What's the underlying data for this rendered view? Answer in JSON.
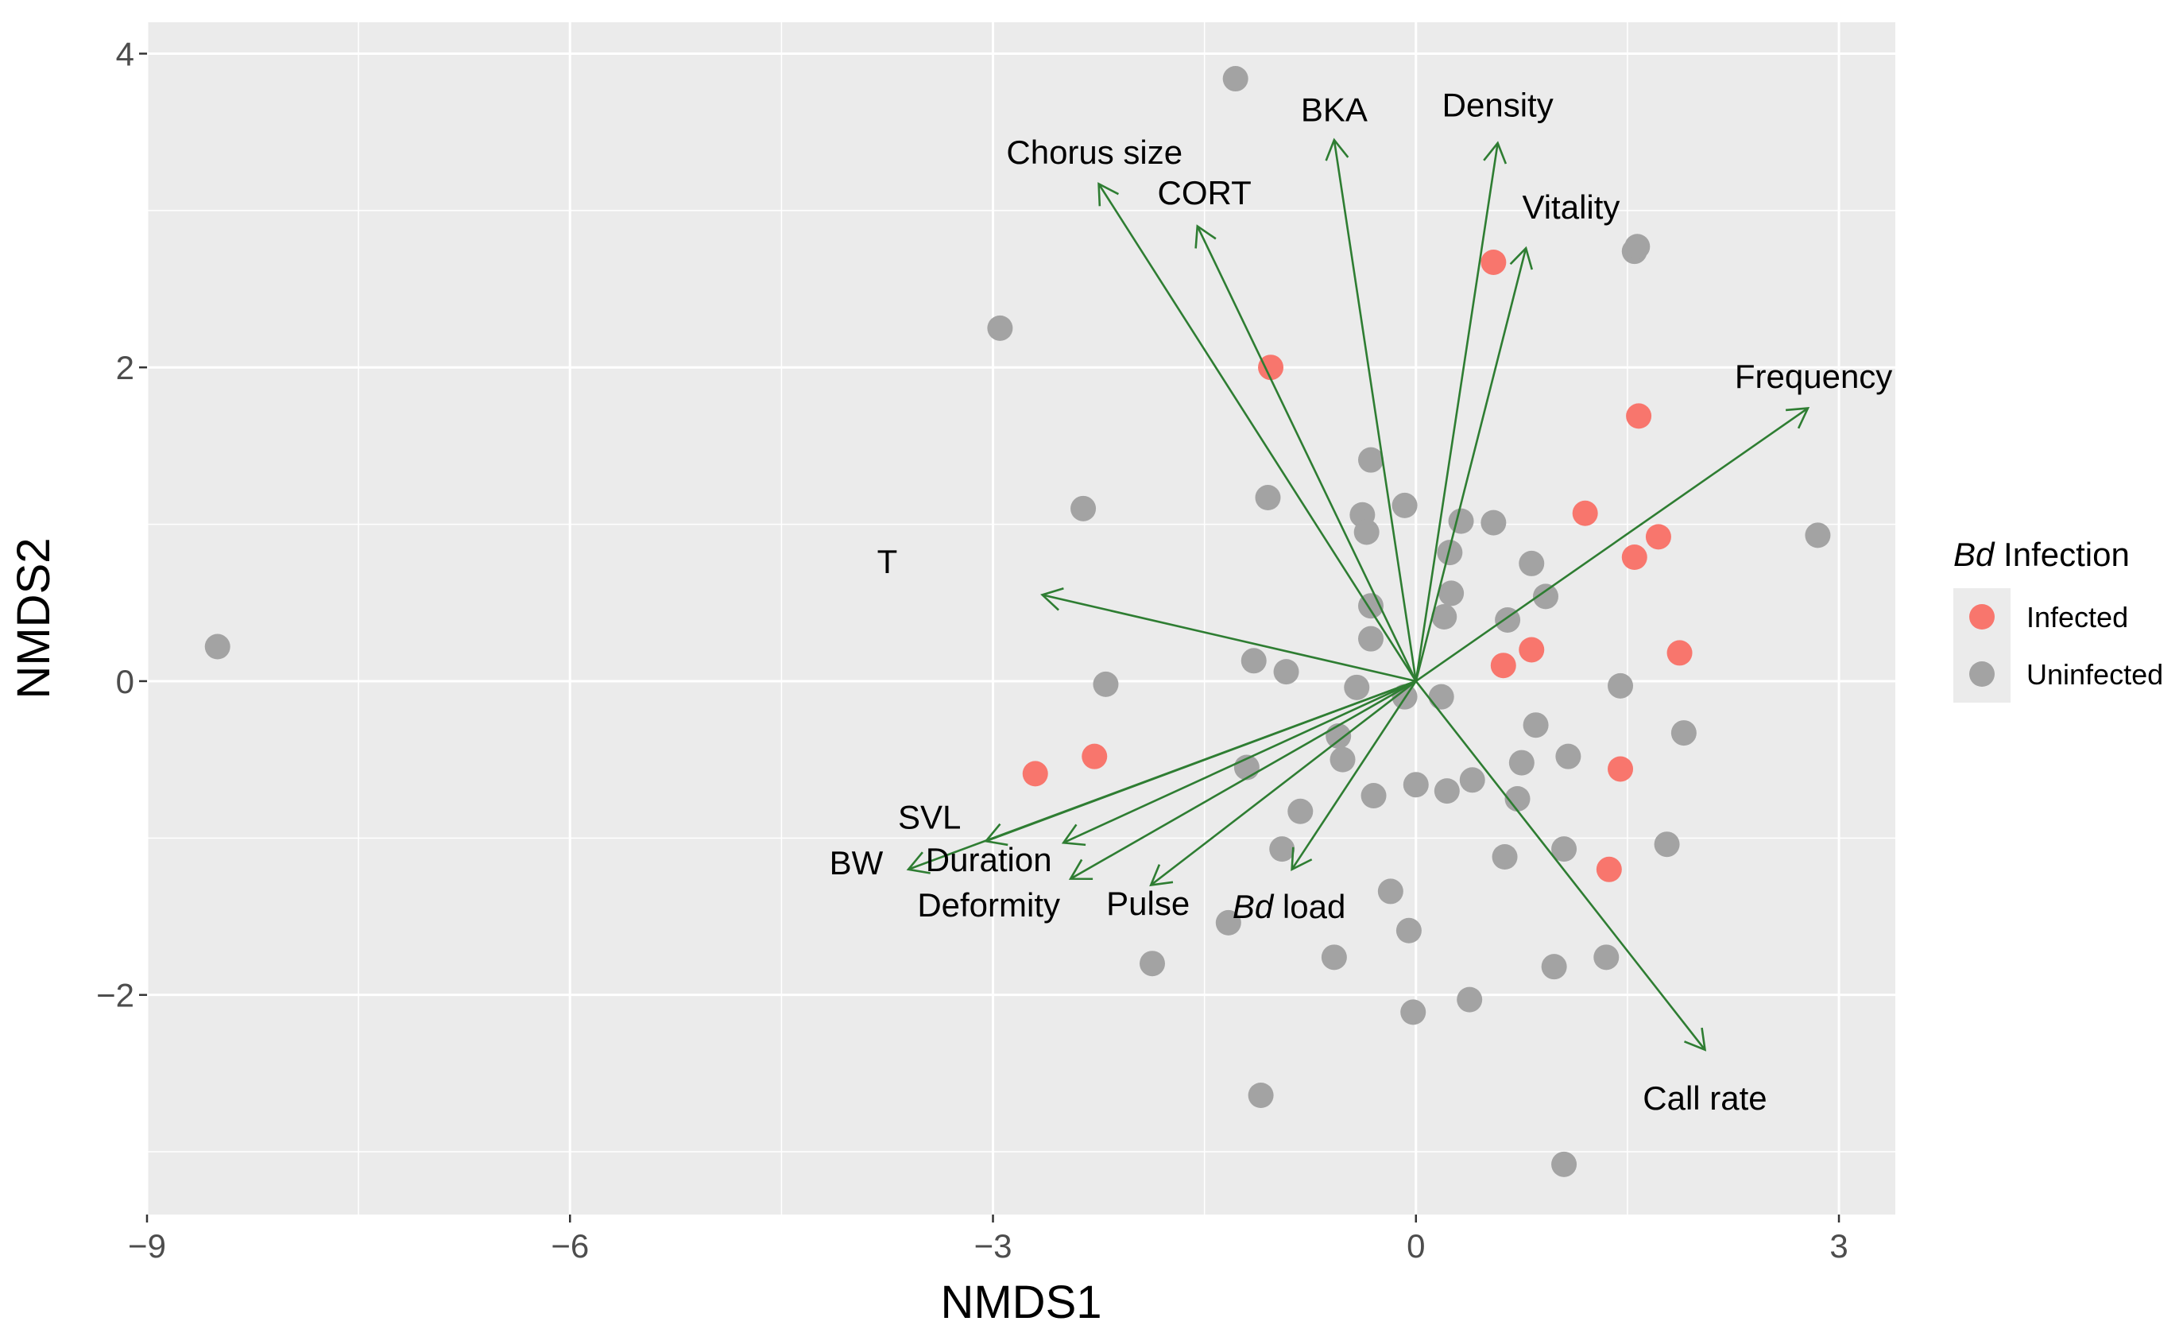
{
  "chart_data": {
    "type": "scatter",
    "title": "",
    "xlabel": "NMDS1",
    "ylabel": "NMDS2",
    "xlim": [
      -9,
      3.4
    ],
    "ylim": [
      -3.4,
      4.2
    ],
    "xticks": [
      -9,
      -6,
      -3,
      0,
      3
    ],
    "yticks": [
      -2,
      0,
      2,
      4
    ],
    "xtick_labels": [
      "−9",
      "−6",
      "−3",
      "0",
      "3"
    ],
    "ytick_labels": [
      "−2",
      "0",
      "2",
      "4"
    ],
    "colors": {
      "panel": "#ebebeb",
      "grid": "#ffffff",
      "infected": "#f8766d",
      "uninfected": "#a3a3a3",
      "arrow": "#2e7d32"
    },
    "legend": {
      "title_italic": "Bd",
      "title_rest": " Infection",
      "position": "right",
      "entries": [
        {
          "label": "Infected",
          "group": "infected"
        },
        {
          "label": "Uninfected",
          "group": "uninfected"
        }
      ]
    },
    "series": [
      {
        "name": "Infected",
        "group": "infected",
        "points": [
          [
            0.55,
            2.67
          ],
          [
            -1.03,
            2.0
          ],
          [
            1.58,
            1.69
          ],
          [
            1.2,
            1.07
          ],
          [
            1.72,
            0.92
          ],
          [
            1.55,
            0.79
          ],
          [
            1.87,
            0.18
          ],
          [
            0.82,
            0.2
          ],
          [
            0.62,
            0.1
          ],
          [
            -2.28,
            -0.48
          ],
          [
            -2.7,
            -0.59
          ],
          [
            1.45,
            -0.56
          ],
          [
            1.37,
            -1.2
          ]
        ]
      },
      {
        "name": "Uninfected",
        "group": "uninfected",
        "points": [
          [
            -8.5,
            0.22
          ],
          [
            -1.28,
            3.84
          ],
          [
            -2.95,
            2.25
          ],
          [
            1.55,
            2.74
          ],
          [
            1.57,
            2.77
          ],
          [
            -2.36,
            1.1
          ],
          [
            -1.05,
            1.17
          ],
          [
            -0.32,
            1.41
          ],
          [
            -0.38,
            1.06
          ],
          [
            -0.08,
            1.12
          ],
          [
            -0.35,
            0.95
          ],
          [
            0.32,
            1.02
          ],
          [
            0.55,
            1.01
          ],
          [
            2.85,
            0.93
          ],
          [
            0.24,
            0.82
          ],
          [
            0.82,
            0.75
          ],
          [
            0.25,
            0.56
          ],
          [
            0.92,
            0.54
          ],
          [
            -0.32,
            0.48
          ],
          [
            0.65,
            0.39
          ],
          [
            0.2,
            0.41
          ],
          [
            -0.32,
            0.27
          ],
          [
            -1.15,
            0.13
          ],
          [
            -0.92,
            0.06
          ],
          [
            -2.2,
            -0.02
          ],
          [
            -0.42,
            -0.04
          ],
          [
            1.45,
            -0.03
          ],
          [
            -0.08,
            -0.1
          ],
          [
            0.18,
            -0.1
          ],
          [
            0.85,
            -0.28
          ],
          [
            1.9,
            -0.33
          ],
          [
            -0.55,
            -0.35
          ],
          [
            1.08,
            -0.48
          ],
          [
            -0.52,
            -0.5
          ],
          [
            0.75,
            -0.52
          ],
          [
            -1.2,
            -0.55
          ],
          [
            0.4,
            -0.63
          ],
          [
            0.0,
            -0.66
          ],
          [
            0.22,
            -0.7
          ],
          [
            -0.3,
            -0.73
          ],
          [
            0.72,
            -0.75
          ],
          [
            -0.82,
            -0.83
          ],
          [
            -0.95,
            -1.07
          ],
          [
            1.05,
            -1.07
          ],
          [
            1.78,
            -1.04
          ],
          [
            0.63,
            -1.12
          ],
          [
            -0.18,
            -1.34
          ],
          [
            -1.33,
            -1.54
          ],
          [
            -0.05,
            -1.59
          ],
          [
            -0.58,
            -1.76
          ],
          [
            -1.87,
            -1.8
          ],
          [
            1.35,
            -1.76
          ],
          [
            0.98,
            -1.82
          ],
          [
            0.38,
            -2.03
          ],
          [
            -0.02,
            -2.11
          ],
          [
            -1.1,
            -2.64
          ],
          [
            1.05,
            -3.08
          ]
        ]
      }
    ],
    "vectors": [
      {
        "label": "Chorus size",
        "italic": "",
        "end": [
          -2.25,
          3.17
        ],
        "label_at": [
          -2.28,
          3.37
        ]
      },
      {
        "label": "CORT",
        "italic": "",
        "end": [
          -1.55,
          2.9
        ],
        "label_at": [
          -1.5,
          3.11
        ]
      },
      {
        "label": "BKA",
        "italic": "",
        "end": [
          -0.58,
          3.45
        ],
        "label_at": [
          -0.58,
          3.64
        ]
      },
      {
        "label": "Density",
        "italic": "",
        "end": [
          0.58,
          3.43
        ],
        "label_at": [
          0.58,
          3.67
        ]
      },
      {
        "label": "Vitality",
        "italic": "",
        "end": [
          0.78,
          2.76
        ],
        "label_at": [
          1.1,
          3.02
        ]
      },
      {
        "label": "Frequency",
        "italic": "",
        "end": [
          2.78,
          1.74
        ],
        "label_at": [
          2.82,
          1.94
        ]
      },
      {
        "label": "T",
        "italic": "",
        "end": [
          -2.65,
          0.55
        ],
        "label_at": [
          -3.75,
          0.76
        ]
      },
      {
        "label": "SVL",
        "italic": "",
        "end": [
          -3.05,
          -1.02
        ],
        "label_at": [
          -3.45,
          -0.87
        ]
      },
      {
        "label": "BW",
        "italic": "",
        "end": [
          -3.6,
          -1.2
        ],
        "label_at": [
          -3.97,
          -1.16
        ]
      },
      {
        "label": "Duration",
        "italic": "",
        "end": [
          -2.5,
          -1.03
        ],
        "label_at": [
          -3.03,
          -1.14
        ]
      },
      {
        "label": "Deformity",
        "italic": "",
        "end": [
          -2.45,
          -1.26
        ],
        "label_at": [
          -3.03,
          -1.43
        ]
      },
      {
        "label": "Pulse",
        "italic": "",
        "end": [
          -1.88,
          -1.3
        ],
        "label_at": [
          -1.9,
          -1.42
        ]
      },
      {
        "label": " load",
        "italic": "Bd",
        "end": [
          -0.88,
          -1.2
        ],
        "label_at": [
          -0.9,
          -1.44
        ]
      },
      {
        "label": "Call rate",
        "italic": "",
        "end": [
          2.05,
          -2.35
        ],
        "label_at": [
          2.05,
          -2.66
        ]
      }
    ]
  }
}
